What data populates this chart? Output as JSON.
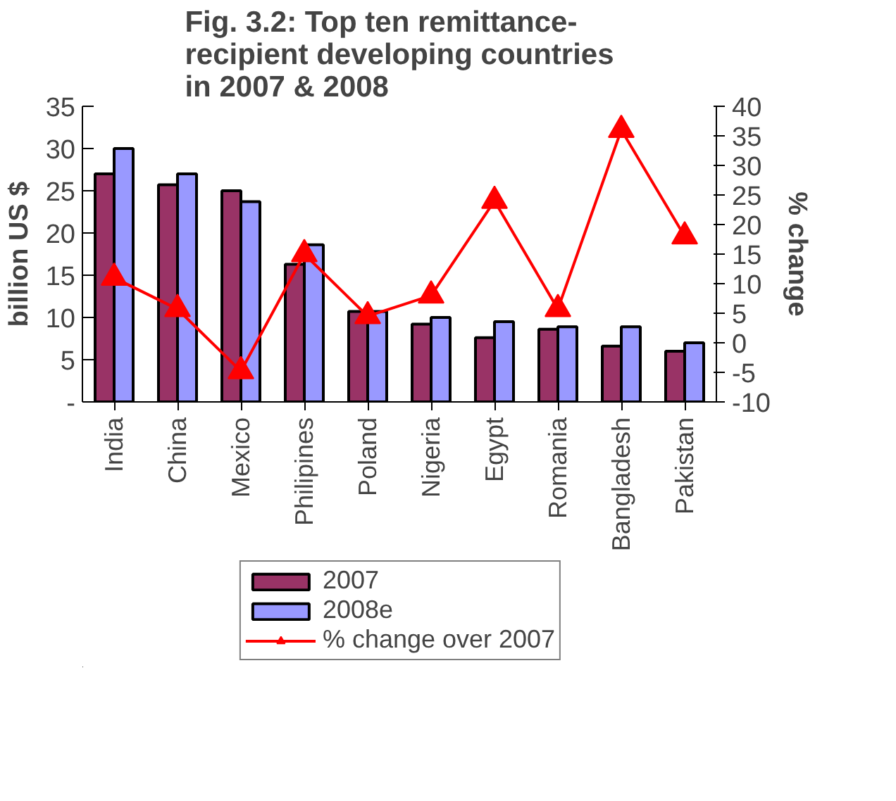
{
  "chart_data": {
    "type": "bar",
    "title": "Fig. 3.2: Top ten remittance-\nrecipient developing countries\nin 2007 & 2008",
    "categories": [
      "India",
      "China",
      "Mexico",
      "Philipines",
      "Poland",
      "Nigeria",
      "Egypt",
      "Romania",
      "Bangladesh",
      "Pakistan"
    ],
    "series": [
      {
        "name": "2007",
        "color": "#993366",
        "values": [
          27,
          25.7,
          25,
          16.3,
          10.7,
          9.2,
          7.6,
          8.6,
          6.6,
          6
        ]
      },
      {
        "name": "2008e",
        "color": "#9999ff",
        "values": [
          30,
          27,
          23.7,
          18.6,
          10.7,
          10,
          9.5,
          8.9,
          8.9,
          7
        ]
      },
      {
        "name": "% change over 2007",
        "type": "line",
        "axis": "y2",
        "color": "#ff0000",
        "marker": "triangle",
        "values": [
          11,
          5.7,
          -4.8,
          15,
          4.5,
          8,
          24,
          5.7,
          36,
          18
        ]
      }
    ],
    "ylabel": "billion US $",
    "y2label": "% change",
    "ylim": [
      0,
      35
    ],
    "yticks": [
      {
        "value": 0,
        "label": "-"
      },
      5,
      10,
      15,
      20,
      25,
      30,
      35
    ],
    "y2lim": [
      -10,
      40
    ],
    "y2ticks": [
      -10,
      -5,
      0,
      5,
      10,
      15,
      20,
      25,
      30,
      35,
      40
    ],
    "grid": false,
    "legend": "bottom"
  }
}
